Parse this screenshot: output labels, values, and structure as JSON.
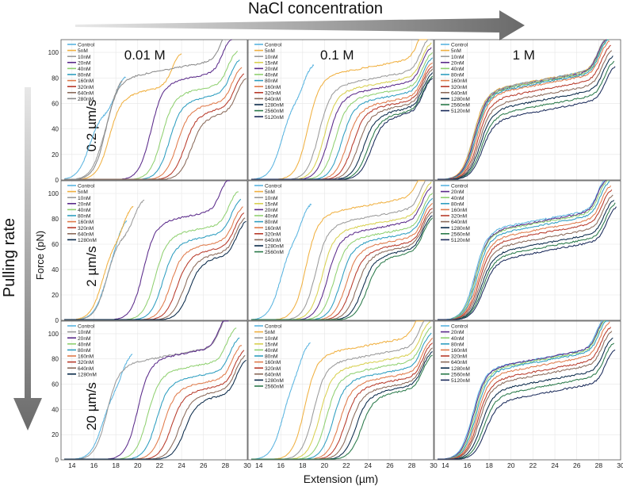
{
  "header": {
    "label": "NaCl concentration"
  },
  "side": {
    "label": "Pulling rate"
  },
  "axes": {
    "xlabel": "Extension (µm)",
    "ylabel": "Force (pN)",
    "xlim": [
      13,
      30
    ],
    "ylim": [
      0,
      110
    ],
    "xticks": [
      14,
      16,
      18,
      20,
      22,
      24,
      26,
      28,
      30
    ],
    "yticks": [
      0,
      20,
      40,
      60,
      80,
      100
    ]
  },
  "columns": [
    "0.01 M",
    "0.1 M",
    "1 M"
  ],
  "rows": [
    "0.2 µm/s",
    "2 µm/s",
    "20 µm/s"
  ],
  "colors": {
    "Control": "#5ab4e0",
    "5nM": "#f0b040",
    "10nM": "#9a9a9a",
    "15nM": "#d8d050",
    "20nM": "#5a2a8a",
    "40nM": "#8fd070",
    "80nM": "#2e9ec0",
    "160nM": "#e07a4a",
    "320nM": "#b83a2a",
    "640nM": "#8a6a5a",
    "1280nM": "#0a2a4a",
    "2560nM": "#2a7a4a",
    "5120nM": "#1a2a5a",
    "280nM": "#8a8a8a"
  },
  "chart_data": [
    {
      "type": "line",
      "row": 0,
      "col": 0,
      "series": [
        {
          "name": "Control",
          "ramp": 15.6,
          "plateau": 54,
          "end": 18.9
        },
        {
          "name": "5nM",
          "ramp": 17.4,
          "plateau": 67,
          "end": 24.0
        },
        {
          "name": "10nM",
          "ramp": 16.7,
          "plateau": 55,
          "end": 18.6
        },
        {
          "name": "20nM",
          "ramp": 21.2,
          "plateau": 77,
          "end": 28.6
        },
        {
          "name": "40nM",
          "ramp": 22.2,
          "plateau": 68,
          "end": 29.1
        },
        {
          "name": "80nM",
          "ramp": 22.9,
          "plateau": 62,
          "end": 29.3
        },
        {
          "name": "160nM",
          "ramp": 23.6,
          "plateau": 57,
          "end": 29.5
        },
        {
          "name": "320nM",
          "ramp": 24.3,
          "plateau": 53,
          "end": 29.7
        },
        {
          "name": "640nM",
          "ramp": 24.9,
          "plateau": 50,
          "end": 29.9
        },
        {
          "name": "280nM",
          "ramp": 17.1,
          "plateau": 80,
          "end": 28.5
        }
      ]
    },
    {
      "type": "line",
      "row": 0,
      "col": 1,
      "series": [
        {
          "name": "Control",
          "ramp": 16.1,
          "plateau": 64,
          "end": 19.0
        },
        {
          "name": "5nM",
          "ramp": 18.5,
          "plateau": 82,
          "end": 29.5
        },
        {
          "name": "10nM",
          "ramp": 19.5,
          "plateau": 74,
          "end": 29.7
        },
        {
          "name": "15nM",
          "ramp": 20.0,
          "plateau": 70,
          "end": 29.8
        },
        {
          "name": "20nM",
          "ramp": 20.4,
          "plateau": 67,
          "end": 29.8
        },
        {
          "name": "40nM",
          "ramp": 21.0,
          "plateau": 64,
          "end": 29.9
        },
        {
          "name": "80nM",
          "ramp": 21.6,
          "plateau": 61,
          "end": 29.9
        },
        {
          "name": "160nM",
          "ramp": 22.1,
          "plateau": 58,
          "end": 29.9
        },
        {
          "name": "320nM",
          "ramp": 22.6,
          "plateau": 56,
          "end": 29.9
        },
        {
          "name": "640nM",
          "ramp": 23.1,
          "plateau": 54,
          "end": 29.9
        },
        {
          "name": "1280nM",
          "ramp": 23.6,
          "plateau": 52,
          "end": 29.9
        },
        {
          "name": "2560nM",
          "ramp": 24.0,
          "plateau": 50,
          "end": 29.9
        },
        {
          "name": "5120nM",
          "ramp": 24.3,
          "plateau": 49,
          "end": 29.9
        }
      ]
    },
    {
      "type": "line",
      "row": 0,
      "col": 2,
      "series": [
        {
          "name": "Control",
          "ramp": 16.6,
          "plateau": 71,
          "end": 28.8
        },
        {
          "name": "5nM",
          "ramp": 16.6,
          "plateau": 71,
          "end": 28.8
        },
        {
          "name": "10nM",
          "ramp": 16.7,
          "plateau": 71,
          "end": 28.8
        },
        {
          "name": "20nM",
          "ramp": 16.7,
          "plateau": 70,
          "end": 28.8
        },
        {
          "name": "40nM",
          "ramp": 16.8,
          "plateau": 70,
          "end": 28.9
        },
        {
          "name": "80nM",
          "ramp": 16.8,
          "plateau": 69,
          "end": 28.9
        },
        {
          "name": "160nM",
          "ramp": 16.9,
          "plateau": 68,
          "end": 29.0
        },
        {
          "name": "320nM",
          "ramp": 17.0,
          "plateau": 64,
          "end": 29.1
        },
        {
          "name": "640nM",
          "ramp": 17.1,
          "plateau": 60,
          "end": 29.2
        },
        {
          "name": "1280nM",
          "ramp": 17.2,
          "plateau": 56,
          "end": 29.3
        },
        {
          "name": "2560nM",
          "ramp": 17.3,
          "plateau": 52,
          "end": 29.4
        },
        {
          "name": "5120nM",
          "ramp": 17.4,
          "plateau": 48,
          "end": 29.5
        }
      ]
    },
    {
      "type": "line",
      "row": 1,
      "col": 0,
      "series": [
        {
          "name": "Control",
          "ramp": 17.0,
          "plateau": 55,
          "end": 19.0
        },
        {
          "name": "5nM",
          "ramp": 16.8,
          "plateau": 64,
          "end": 19.6
        },
        {
          "name": "10nM",
          "ramp": 17.2,
          "plateau": 68,
          "end": 20.6
        },
        {
          "name": "20nM",
          "ramp": 20.5,
          "plateau": 78,
          "end": 28.4
        },
        {
          "name": "40nM",
          "ramp": 21.6,
          "plateau": 68,
          "end": 29.2
        },
        {
          "name": "80nM",
          "ramp": 22.3,
          "plateau": 62,
          "end": 29.4
        },
        {
          "name": "160nM",
          "ramp": 23.0,
          "plateau": 57,
          "end": 29.6
        },
        {
          "name": "320nM",
          "ramp": 23.6,
          "plateau": 53,
          "end": 29.7
        },
        {
          "name": "640nM",
          "ramp": 24.2,
          "plateau": 50,
          "end": 29.8
        },
        {
          "name": "1280nM",
          "ramp": 24.7,
          "plateau": 48,
          "end": 29.9
        }
      ]
    },
    {
      "type": "line",
      "row": 1,
      "col": 1,
      "series": [
        {
          "name": "Control",
          "ramp": 16.0,
          "plateau": 66,
          "end": 18.8
        },
        {
          "name": "5nM",
          "ramp": 18.3,
          "plateau": 84,
          "end": 29.5
        },
        {
          "name": "10nM",
          "ramp": 19.2,
          "plateau": 76,
          "end": 29.7
        },
        {
          "name": "15nM",
          "ramp": 19.8,
          "plateau": 71,
          "end": 29.8
        },
        {
          "name": "20nM",
          "ramp": 20.3,
          "plateau": 68,
          "end": 29.8
        },
        {
          "name": "40nM",
          "ramp": 20.9,
          "plateau": 64,
          "end": 29.9
        },
        {
          "name": "80nM",
          "ramp": 21.5,
          "plateau": 61,
          "end": 29.9
        },
        {
          "name": "160nM",
          "ramp": 22.0,
          "plateau": 58,
          "end": 29.9
        },
        {
          "name": "320nM",
          "ramp": 22.5,
          "plateau": 55,
          "end": 29.9
        },
        {
          "name": "640nM",
          "ramp": 23.0,
          "plateau": 53,
          "end": 29.9
        },
        {
          "name": "1280nM",
          "ramp": 23.5,
          "plateau": 51,
          "end": 29.9
        },
        {
          "name": "2560nM",
          "ramp": 23.9,
          "plateau": 49,
          "end": 29.9
        }
      ]
    },
    {
      "type": "line",
      "row": 1,
      "col": 2,
      "series": [
        {
          "name": "Control",
          "ramp": 16.7,
          "plateau": 72,
          "end": 28.8
        },
        {
          "name": "20nM",
          "ramp": 16.8,
          "plateau": 71,
          "end": 28.8
        },
        {
          "name": "40nM",
          "ramp": 16.8,
          "plateau": 70,
          "end": 28.9
        },
        {
          "name": "80nM",
          "ramp": 16.9,
          "plateau": 68,
          "end": 29.0
        },
        {
          "name": "160nM",
          "ramp": 17.0,
          "plateau": 65,
          "end": 29.1
        },
        {
          "name": "320nM",
          "ramp": 17.1,
          "plateau": 62,
          "end": 29.2
        },
        {
          "name": "640nM",
          "ramp": 17.2,
          "plateau": 58,
          "end": 29.3
        },
        {
          "name": "1280nM",
          "ramp": 17.3,
          "plateau": 54,
          "end": 29.4
        },
        {
          "name": "2560nM",
          "ramp": 17.4,
          "plateau": 51,
          "end": 29.5
        },
        {
          "name": "5120nM",
          "ramp": 17.5,
          "plateau": 48,
          "end": 29.6
        }
      ]
    },
    {
      "type": "line",
      "row": 2,
      "col": 0,
      "series": [
        {
          "name": "Control",
          "ramp": 16.8,
          "plateau": 58,
          "end": 19.5
        },
        {
          "name": "10nM",
          "ramp": 17.2,
          "plateau": 76,
          "end": 28.4
        },
        {
          "name": "20nM",
          "ramp": 20.0,
          "plateau": 80,
          "end": 28.3
        },
        {
          "name": "40nM",
          "ramp": 20.9,
          "plateau": 70,
          "end": 29.0
        },
        {
          "name": "80nM",
          "ramp": 21.7,
          "plateau": 63,
          "end": 29.3
        },
        {
          "name": "160nM",
          "ramp": 22.4,
          "plateau": 58,
          "end": 29.5
        },
        {
          "name": "320nM",
          "ramp": 23.1,
          "plateau": 54,
          "end": 29.7
        },
        {
          "name": "640nM",
          "ramp": 23.8,
          "plateau": 51,
          "end": 29.8
        },
        {
          "name": "1280nM",
          "ramp": 24.3,
          "plateau": 48,
          "end": 29.9
        }
      ]
    },
    {
      "type": "line",
      "row": 2,
      "col": 1,
      "series": [
        {
          "name": "Control",
          "ramp": 16.2,
          "plateau": 68,
          "end": 18.7
        },
        {
          "name": "5nM",
          "ramp": 18.2,
          "plateau": 84,
          "end": 29.3
        },
        {
          "name": "10nM",
          "ramp": 19.0,
          "plateau": 77,
          "end": 29.6
        },
        {
          "name": "15nM",
          "ramp": 19.6,
          "plateau": 72,
          "end": 29.7
        },
        {
          "name": "40nM",
          "ramp": 20.2,
          "plateau": 68,
          "end": 29.8
        },
        {
          "name": "80nM",
          "ramp": 20.8,
          "plateau": 64,
          "end": 29.8
        },
        {
          "name": "160nM",
          "ramp": 21.4,
          "plateau": 61,
          "end": 29.9
        },
        {
          "name": "320nM",
          "ramp": 21.9,
          "plateau": 58,
          "end": 29.9
        },
        {
          "name": "640nM",
          "ramp": 22.4,
          "plateau": 55,
          "end": 29.9
        },
        {
          "name": "1280nM",
          "ramp": 22.9,
          "plateau": 53,
          "end": 29.9
        },
        {
          "name": "2560nM",
          "ramp": 23.4,
          "plateau": 51,
          "end": 29.9
        }
      ]
    },
    {
      "type": "line",
      "row": 2,
      "col": 2,
      "series": [
        {
          "name": "Control",
          "ramp": 16.5,
          "plateau": 73,
          "end": 28.7
        },
        {
          "name": "20nM",
          "ramp": 16.6,
          "plateau": 73,
          "end": 28.8
        },
        {
          "name": "40nM",
          "ramp": 16.7,
          "plateau": 72,
          "end": 28.8
        },
        {
          "name": "80nM",
          "ramp": 16.8,
          "plateau": 71,
          "end": 28.9
        },
        {
          "name": "160nM",
          "ramp": 16.9,
          "plateau": 68,
          "end": 29.0
        },
        {
          "name": "320nM",
          "ramp": 17.0,
          "plateau": 64,
          "end": 29.1
        },
        {
          "name": "640nM",
          "ramp": 17.1,
          "plateau": 61,
          "end": 29.2
        },
        {
          "name": "1280nM",
          "ramp": 17.3,
          "plateau": 56,
          "end": 29.3
        },
        {
          "name": "2560nM",
          "ramp": 17.5,
          "plateau": 52,
          "end": 29.4
        },
        {
          "name": "5120nM",
          "ramp": 17.7,
          "plateau": 47,
          "end": 29.5
        }
      ]
    }
  ]
}
